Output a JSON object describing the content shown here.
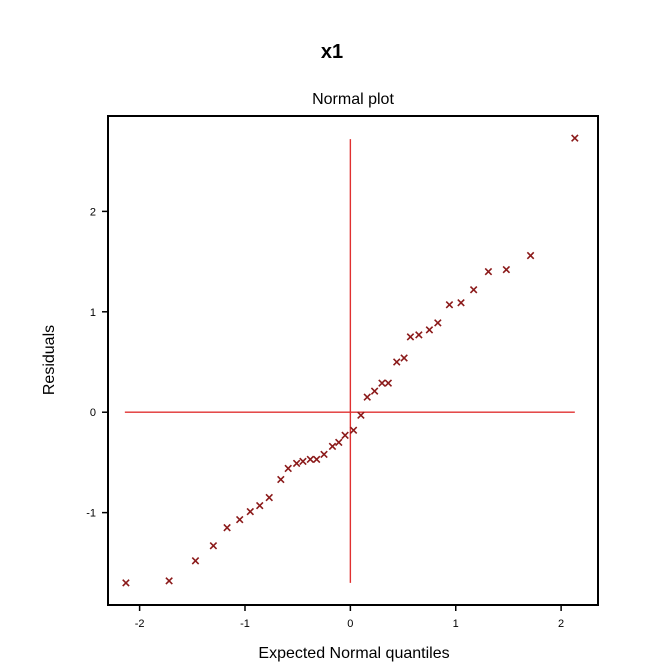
{
  "chart_data": {
    "type": "scatter",
    "title": "x1",
    "subtitle": "Normal plot",
    "xlabel": "Expected Normal quantiles",
    "ylabel": "Residuals",
    "xlim": [
      -2.3,
      2.35
    ],
    "ylim": [
      -1.92,
      2.95
    ],
    "xticks": [
      -2,
      -1,
      0,
      1,
      2
    ],
    "yticks": [
      -1,
      0,
      1,
      2
    ],
    "grid": false,
    "marker": "x",
    "colors": {
      "points": "#8b1a1a",
      "reference_lines": "#e03030",
      "frame": "#000000"
    },
    "reference_lines": {
      "horizontal": {
        "y": 0,
        "x_from": -2.14,
        "x_to": 2.13
      },
      "vertical": {
        "x": 0,
        "y_from": -1.7,
        "y_to": 2.72
      }
    },
    "series": [
      {
        "points": [
          [
            -2.13,
            -1.7
          ],
          [
            -1.72,
            -1.68
          ],
          [
            -1.47,
            -1.48
          ],
          [
            -1.3,
            -1.33
          ],
          [
            -1.17,
            -1.15
          ],
          [
            -1.05,
            -1.07
          ],
          [
            -0.95,
            -0.99
          ],
          [
            -0.86,
            -0.93
          ],
          [
            -0.77,
            -0.85
          ],
          [
            -0.66,
            -0.67
          ],
          [
            -0.59,
            -0.56
          ],
          [
            -0.51,
            -0.51
          ],
          [
            -0.45,
            -0.49
          ],
          [
            -0.38,
            -0.47
          ],
          [
            -0.32,
            -0.47
          ],
          [
            -0.25,
            -0.42
          ],
          [
            -0.17,
            -0.34
          ],
          [
            -0.11,
            -0.3
          ],
          [
            -0.05,
            -0.23
          ],
          [
            0.03,
            -0.18
          ],
          [
            0.1,
            -0.03
          ],
          [
            0.16,
            0.15
          ],
          [
            0.23,
            0.21
          ],
          [
            0.3,
            0.29
          ],
          [
            0.36,
            0.29
          ],
          [
            0.44,
            0.5
          ],
          [
            0.51,
            0.54
          ],
          [
            0.57,
            0.75
          ],
          [
            0.65,
            0.77
          ],
          [
            0.75,
            0.82
          ],
          [
            0.83,
            0.89
          ],
          [
            0.94,
            1.07
          ],
          [
            1.05,
            1.09
          ],
          [
            1.17,
            1.22
          ],
          [
            1.31,
            1.4
          ],
          [
            1.48,
            1.42
          ],
          [
            1.71,
            1.56
          ],
          [
            2.13,
            2.73
          ]
        ]
      }
    ]
  }
}
